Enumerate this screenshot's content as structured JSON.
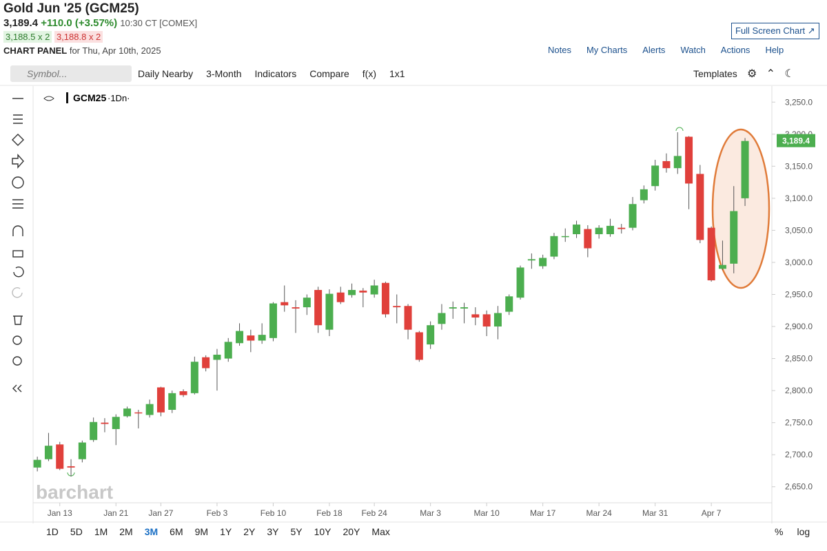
{
  "header": {
    "title": "Gold Jun '25 (GCM25)",
    "price": "3,189.4",
    "change": "+110.0 (+3.57%)",
    "time": "10:30 CT [COMEX]",
    "bid": "3,188.5 x 2",
    "ask": "3,188.8 x 2",
    "panel": "CHART PANEL",
    "date": "for Thu, Apr 10th, 2025",
    "fullscreen": "Full Screen Chart"
  },
  "nav": [
    "Notes",
    "My Charts",
    "Alerts",
    "Watch",
    "Actions",
    "Help"
  ],
  "toolbar": {
    "symbol": "Symbol...",
    "items": [
      "Daily Nearby",
      "3-Month",
      "Indicators",
      "Compare",
      "f(x)",
      "1x1"
    ],
    "templates": "Templates"
  },
  "legend": {
    "symbol": "GCM25",
    "interval": "·1Dn·"
  },
  "watermark": "barchart",
  "ranges": [
    "1D",
    "5D",
    "1M",
    "2M",
    "3M",
    "6M",
    "9M",
    "1Y",
    "2Y",
    "3Y",
    "5Y",
    "10Y",
    "20Y",
    "Max"
  ],
  "scale_options": [
    "%",
    "log"
  ],
  "chart_data": {
    "type": "candlestick",
    "up_color": "#4cae4f",
    "down_color": "#e0403b",
    "categories": [
      null,
      null,
      "Jan 13",
      null,
      null,
      null,
      null,
      "Jan 21",
      null,
      null,
      null,
      "Jan 27",
      null,
      null,
      null,
      null,
      "Feb 3",
      null,
      null,
      null,
      null,
      "Feb 10",
      null,
      null,
      null,
      null,
      "Feb 18",
      null,
      null,
      null,
      "Feb 24",
      null,
      null,
      null,
      null,
      "Mar 3",
      null,
      null,
      null,
      null,
      "Mar 10",
      null,
      null,
      null,
      null,
      "Mar 17",
      null,
      null,
      null,
      null,
      "Mar 24",
      null,
      null,
      null,
      null,
      "Mar 31",
      null,
      null,
      null,
      null,
      "Apr 7",
      null,
      null,
      null
    ],
    "open": [
      2680,
      2693,
      2716,
      2682,
      2693,
      2723,
      2750,
      2740,
      2760,
      2766,
      2762,
      2805,
      2770,
      2799,
      2796,
      2852,
      2848,
      2850,
      2874,
      2886,
      2878,
      2882,
      2938,
      2930,
      2930,
      2957,
      2895,
      2953,
      2949,
      2956,
      2950,
      2968,
      2932,
      2932,
      2891,
      2872,
      2904,
      2928,
      2928,
      2919,
      2919,
      2900,
      2923,
      2945,
      3003,
      2994,
      3009,
      3040,
      3044,
      3052,
      3044,
      3044,
      3054,
      3054,
      3097,
      3119,
      3158,
      3147,
      3196,
      3138,
      3054,
      2990,
      2998,
      3100
    ],
    "high": [
      2697,
      2734,
      2720,
      2693,
      2722,
      2758,
      2757,
      2763,
      2775,
      2770,
      2786,
      2806,
      2800,
      2802,
      2853,
      2855,
      2865,
      2882,
      2905,
      2895,
      2905,
      2938,
      2964,
      2941,
      2950,
      2962,
      2958,
      2962,
      2967,
      2960,
      2973,
      2970,
      2950,
      2935,
      2893,
      2908,
      2935,
      2939,
      2937,
      2930,
      2925,
      2932,
      2950,
      2995,
      3014,
      3012,
      3046,
      3053,
      3065,
      3058,
      3058,
      3068,
      3060,
      3102,
      3120,
      3160,
      3170,
      3203,
      3197,
      3152,
      3056,
      3034,
      3119,
      3194
    ],
    "low": [
      2674,
      2690,
      2676,
      2666,
      2688,
      2720,
      2735,
      2715,
      2758,
      2741,
      2758,
      2760,
      2765,
      2790,
      2794,
      2830,
      2800,
      2845,
      2870,
      2860,
      2873,
      2877,
      2923,
      2890,
      2918,
      2890,
      2885,
      2935,
      2945,
      2930,
      2945,
      2914,
      2905,
      2880,
      2845,
      2865,
      2895,
      2912,
      2905,
      2902,
      2885,
      2880,
      2918,
      2942,
      2990,
      2990,
      3005,
      3032,
      3038,
      3008,
      3037,
      3040,
      3045,
      3050,
      3092,
      3112,
      3140,
      3138,
      3083,
      3030,
      2970,
      2988,
      2983,
      3088
    ],
    "close": [
      2692,
      2714,
      2678,
      2680,
      2719,
      2751,
      2748,
      2759,
      2772,
      2765,
      2779,
      2766,
      2796,
      2793,
      2845,
      2835,
      2856,
      2876,
      2893,
      2878,
      2887,
      2936,
      2933,
      2928,
      2945,
      2902,
      2951,
      2938,
      2957,
      2953,
      2964,
      2919,
      2930,
      2895,
      2848,
      2902,
      2921,
      2930,
      2930,
      2914,
      2900,
      2921,
      2947,
      2992,
      3005,
      3007,
      3041,
      3041,
      3059,
      3022,
      3054,
      3057,
      3052,
      3091,
      3114,
      3151,
      3147,
      3166,
      3123,
      3035,
      2972,
      2996,
      3080,
      3189.4
    ],
    "last_label": "3,189.4",
    "ylim": [
      2625,
      3275
    ],
    "yticks": [
      {
        "value": 2650,
        "label": "2,650.0"
      },
      {
        "value": 2700,
        "label": "2,700.0"
      },
      {
        "value": 2750,
        "label": "2,750.0"
      },
      {
        "value": 2800,
        "label": "2,800.0"
      },
      {
        "value": 2850,
        "label": "2,850.0"
      },
      {
        "value": 2900,
        "label": "2,900.0"
      },
      {
        "value": 2950,
        "label": "2,950.0"
      },
      {
        "value": 3000,
        "label": "3,000.0"
      },
      {
        "value": 3050,
        "label": "3,050.0"
      },
      {
        "value": 3100,
        "label": "3,100.0"
      },
      {
        "value": 3150,
        "label": "3,150.0"
      },
      {
        "value": 3200,
        "label": "3,200.0"
      },
      {
        "value": 3250,
        "label": "3,250.0"
      }
    ],
    "grid": false
  }
}
